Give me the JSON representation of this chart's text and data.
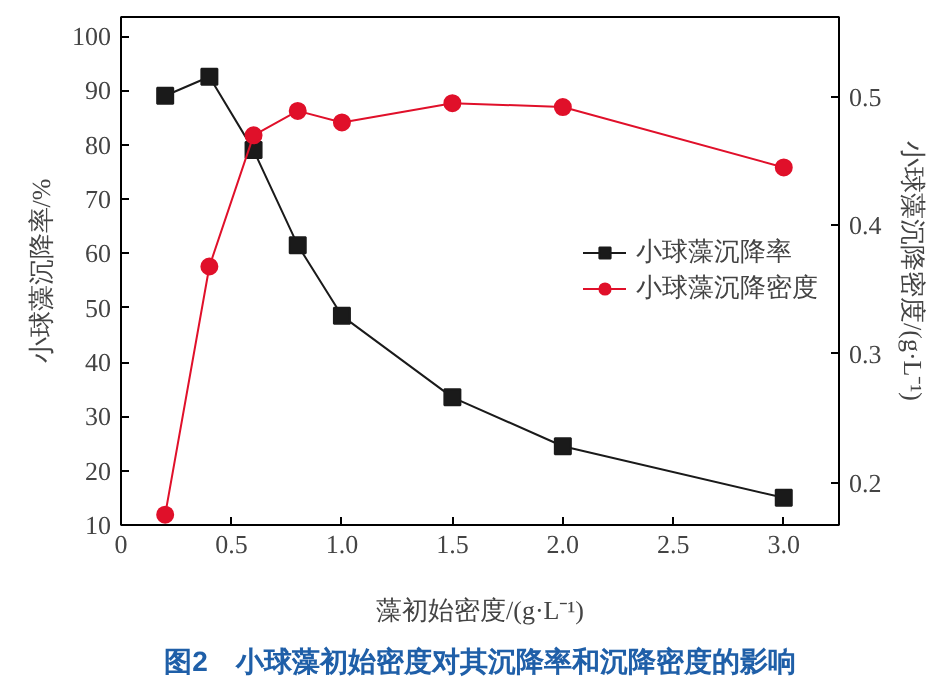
{
  "chart_data": {
    "type": "line",
    "xlabel": "藻初始密度/(g·L⁻¹)",
    "ylabel": "小球藻沉降率/%",
    "y2label": "小球藻沉降密度/(g·L⁻¹)",
    "x": [
      0.2,
      0.4,
      0.6,
      0.8,
      1.0,
      1.5,
      2.0,
      3.0
    ],
    "series": [
      {
        "name": "小球藻沉降率",
        "color": "#1a1a1a",
        "marker": "square",
        "values": [
          89,
          92.5,
          79,
          61.5,
          48.5,
          33.5,
          24.5,
          15
        ]
      },
      {
        "name": "小球藻沉降密度",
        "color": "#e0102a",
        "marker": "circle",
        "axis": "y2",
        "values": [
          0.175,
          0.368,
          0.47,
          0.489,
          0.48,
          0.495,
          0.492,
          0.445
        ]
      }
    ],
    "xlim": [
      0,
      3.25
    ],
    "xticks": [
      0,
      0.5,
      {
        "value": 1,
        "label": "1.0"
      },
      1.5,
      {
        "value": 2,
        "label": "2.0"
      },
      2.5,
      {
        "value": 3,
        "label": "3.0"
      }
    ],
    "ylim": [
      10,
      103.5
    ],
    "yticks": [
      10,
      20,
      30,
      40,
      50,
      60,
      70,
      80,
      90,
      100
    ],
    "y2lim": [
      0.167,
      0.562
    ],
    "y2ticks": [
      0.2,
      0.3,
      0.4,
      0.5
    ],
    "grid": false,
    "legend": "right",
    "line_style": "solid",
    "annotations": [
      "图2　小球藻初始密度对其沉降率和沉降密度的影响"
    ]
  }
}
